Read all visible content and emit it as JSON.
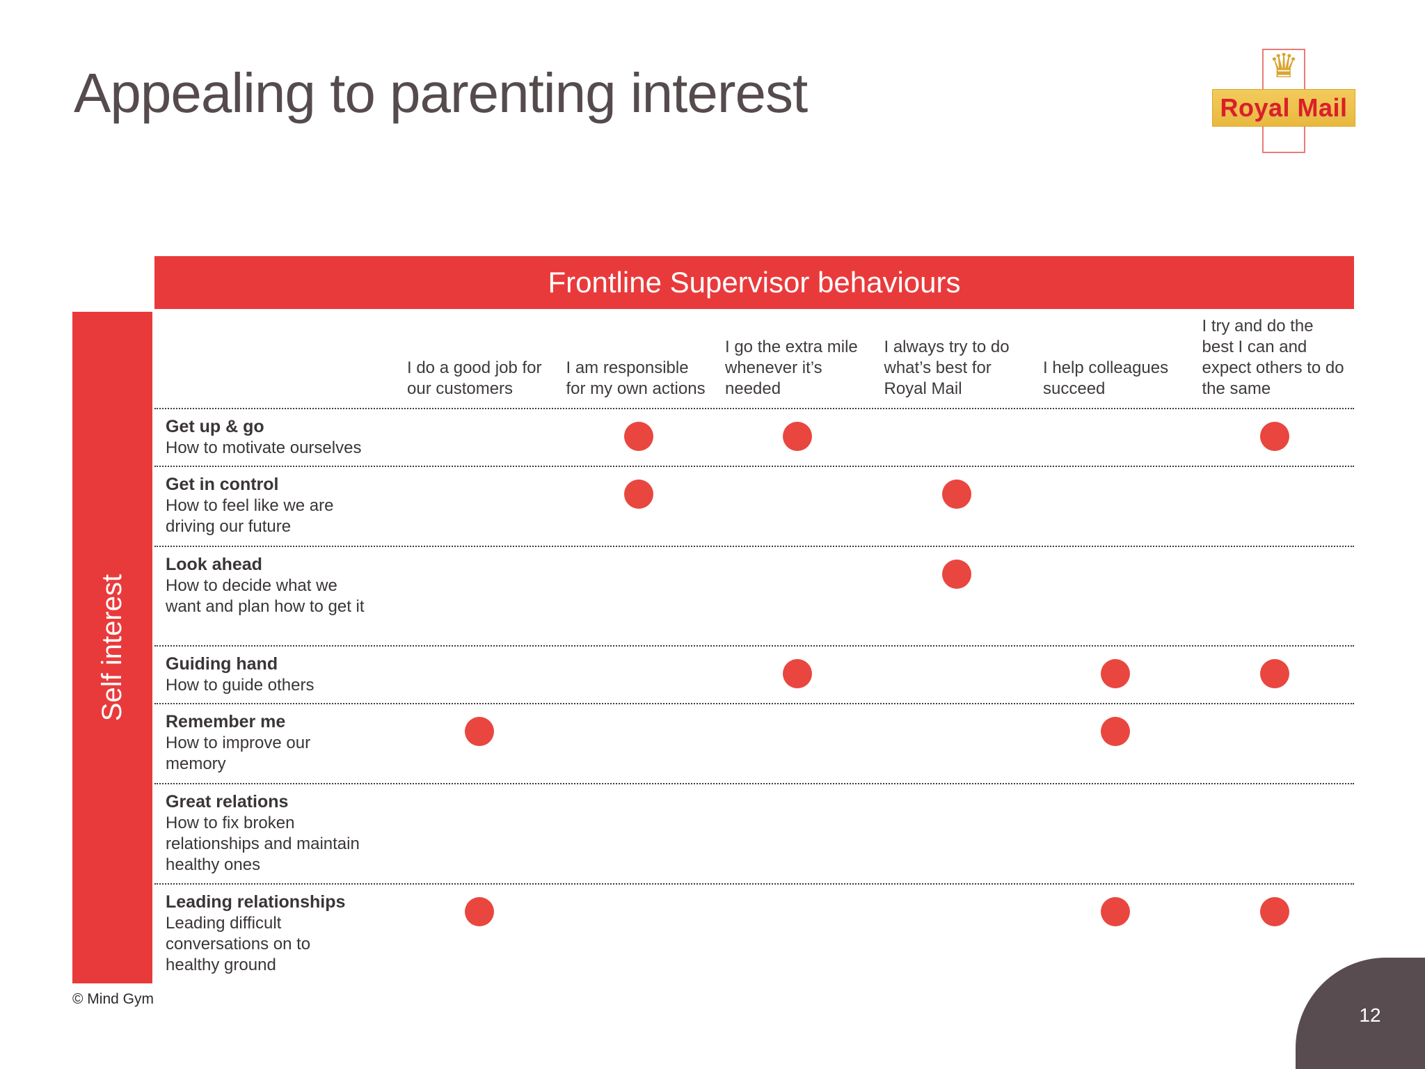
{
  "slide": {
    "title": "Appealing to parenting interest",
    "footer": "© Mind Gym",
    "page_number": "12"
  },
  "logo": {
    "text": "Royal Mail",
    "crown_icon": "crown-icon"
  },
  "matrix": {
    "header": "Frontline Supervisor behaviours",
    "side_label": "Self interest",
    "columns": [
      "I do a good job for our customers",
      "I am responsible for my own actions",
      "I go the extra mile whenever it’s needed",
      "I always try to do what’s best for Royal Mail",
      "I help colleagues succeed",
      "I try and do the best I can and expect others to do the same"
    ],
    "rows": [
      {
        "title": "Get up & go",
        "description": "How to motivate ourselves",
        "dots": [
          2,
          3,
          6
        ]
      },
      {
        "title": "Get in control",
        "description": "How to feel like we are driving our future",
        "dots": [
          2,
          4
        ]
      },
      {
        "title": "Look ahead",
        "description": "How to decide what we want and plan how to get it",
        "dots": [
          4
        ]
      },
      {
        "title": "Guiding hand",
        "description": "How to guide others",
        "dots": [
          3,
          5,
          6
        ]
      },
      {
        "title": "Remember me",
        "description": "How to improve our memory",
        "dots": [
          1,
          5
        ]
      },
      {
        "title": "Great relations",
        "description": "How to fix broken relationships and maintain healthy ones",
        "dots": []
      },
      {
        "title": "Leading relationships",
        "description": "Leading difficult conversations on to healthy ground",
        "dots": [
          1,
          5,
          6
        ]
      }
    ]
  },
  "colors": {
    "brand_red": "#E93A3B",
    "dot_red": "#E9463F",
    "logo_gold": "#E9B93E",
    "corner_dark": "#594C51",
    "title_text": "#554B4D"
  }
}
